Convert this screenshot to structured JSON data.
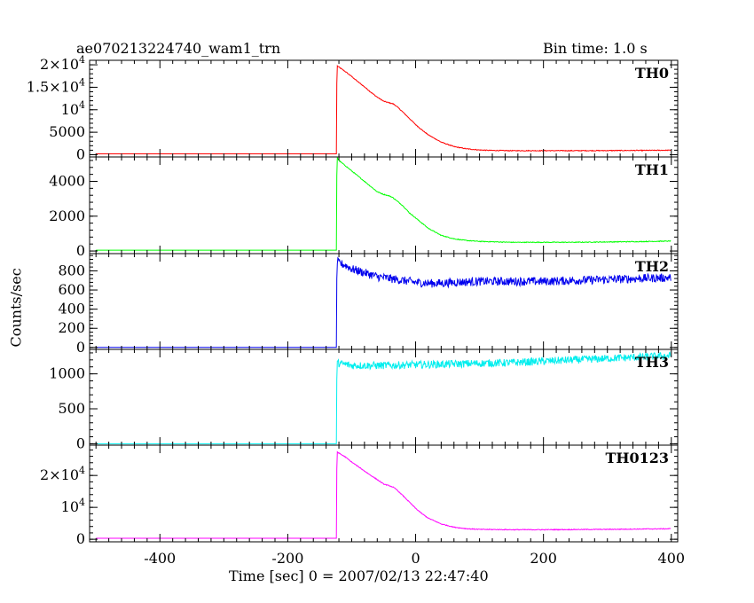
{
  "chart_data": {
    "type": "line",
    "title": "ae070213224740_wam1_trn",
    "subtitle": "Bin time: 1.0 s",
    "xlabel": "Time [sec] 0 = 2007/02/13 22:47:40",
    "ylabel": "Counts/sec",
    "xlim": [
      -510,
      410
    ],
    "xticks": [
      "-400",
      "-200",
      "0",
      "200",
      "400"
    ],
    "xtick_values": [
      -400,
      -200,
      0,
      200,
      400
    ],
    "grid": false,
    "panels": [
      {
        "label": "TH0",
        "color": "#ff0000",
        "ylim": [
          -500,
          21000
        ],
        "yticks": [
          {
            "value": 0,
            "label": "0"
          },
          {
            "value": 5000,
            "label": "5000"
          },
          {
            "value": 10000,
            "label": "10^4"
          },
          {
            "value": 15000,
            "label": "1.5×10^4"
          },
          {
            "value": 20000,
            "label": "2×10^4"
          }
        ],
        "x": [
          -500,
          -400,
          -300,
          -200,
          -130,
          -124,
          -123,
          -120,
          -110,
          -100,
          -90,
          -80,
          -70,
          -60,
          -50,
          -40,
          -35,
          -30,
          -20,
          -10,
          0,
          10,
          20,
          40,
          60,
          80,
          100,
          120,
          150,
          200,
          250,
          300,
          350,
          400
        ],
        "y": [
          200,
          200,
          200,
          200,
          200,
          200,
          19800,
          19500,
          18500,
          17400,
          16200,
          15100,
          13900,
          12800,
          11900,
          11500,
          11300,
          10800,
          9500,
          8100,
          6700,
          5500,
          4400,
          2800,
          1800,
          1300,
          1050,
          950,
          900,
          900,
          900,
          920,
          950,
          1000
        ]
      },
      {
        "label": "TH1",
        "color": "#00ff00",
        "ylim": [
          -150,
          5400
        ],
        "yticks": [
          {
            "value": 0,
            "label": "0"
          },
          {
            "value": 2000,
            "label": "2000"
          },
          {
            "value": 4000,
            "label": "4000"
          }
        ],
        "x": [
          -500,
          -400,
          -300,
          -200,
          -130,
          -124,
          -123,
          -120,
          -110,
          -100,
          -90,
          -80,
          -70,
          -60,
          -50,
          -40,
          -35,
          -30,
          -20,
          -10,
          0,
          10,
          20,
          40,
          60,
          80,
          100,
          150,
          200,
          250,
          300,
          350,
          400
        ],
        "y": [
          50,
          50,
          50,
          50,
          50,
          50,
          5400,
          5200,
          4900,
          4600,
          4300,
          4000,
          3700,
          3400,
          3250,
          3150,
          3050,
          2900,
          2600,
          2200,
          1900,
          1600,
          1300,
          900,
          700,
          600,
          550,
          500,
          500,
          500,
          520,
          540,
          570
        ]
      },
      {
        "label": "TH2",
        "color": "#0000ee",
        "ylim": [
          -20,
          980
        ],
        "yticks": [
          {
            "value": 0,
            "label": "0"
          },
          {
            "value": 200,
            "label": "200"
          },
          {
            "value": 400,
            "label": "400"
          },
          {
            "value": 600,
            "label": "600"
          },
          {
            "value": 800,
            "label": "800"
          }
        ],
        "x": [
          -500,
          -400,
          -300,
          -200,
          -130,
          -124,
          -123,
          -120,
          -110,
          -100,
          -80,
          -60,
          -40,
          -20,
          0,
          20,
          40,
          60,
          100,
          150,
          200,
          250,
          300,
          350,
          400
        ],
        "y": [
          0,
          0,
          0,
          0,
          0,
          0,
          900,
          880,
          860,
          820,
          780,
          740,
          720,
          700,
          680,
          670,
          670,
          680,
          690,
          690,
          690,
          700,
          710,
          720,
          730
        ],
        "noise": 45
      },
      {
        "label": "TH3",
        "color": "#00eeee",
        "ylim": [
          -20,
          1350
        ],
        "yticks": [
          {
            "value": 0,
            "label": "0"
          },
          {
            "value": 500,
            "label": "500"
          },
          {
            "value": 1000,
            "label": "1000"
          }
        ],
        "x": [
          -500,
          -400,
          -300,
          -200,
          -130,
          -124,
          -123,
          -120,
          -100,
          -50,
          0,
          50,
          100,
          150,
          200,
          250,
          300,
          350,
          400
        ],
        "y": [
          0,
          0,
          0,
          0,
          0,
          0,
          1150,
          1150,
          1120,
          1120,
          1130,
          1140,
          1150,
          1160,
          1180,
          1200,
          1220,
          1240,
          1260
        ],
        "noise": 55
      },
      {
        "label": "TH0123",
        "color": "#ff00ff",
        "ylim": [
          -800,
          29500
        ],
        "yticks": [
          {
            "value": 0,
            "label": "0"
          },
          {
            "value": 10000,
            "label": "10^4"
          },
          {
            "value": 20000,
            "label": "2×10^4"
          }
        ],
        "x": [
          -500,
          -400,
          -300,
          -200,
          -130,
          -124,
          -123,
          -120,
          -110,
          -100,
          -90,
          -80,
          -70,
          -60,
          -50,
          -40,
          -35,
          -30,
          -20,
          -10,
          0,
          10,
          20,
          40,
          60,
          80,
          100,
          150,
          200,
          250,
          300,
          350,
          400
        ],
        "y": [
          300,
          300,
          300,
          300,
          300,
          300,
          27500,
          27000,
          25800,
          24200,
          22800,
          21400,
          20000,
          18700,
          17300,
          16700,
          16300,
          15600,
          13700,
          11700,
          9700,
          8000,
          6600,
          4800,
          3800,
          3300,
          3100,
          3000,
          3000,
          3050,
          3100,
          3200,
          3300
        ]
      }
    ]
  }
}
